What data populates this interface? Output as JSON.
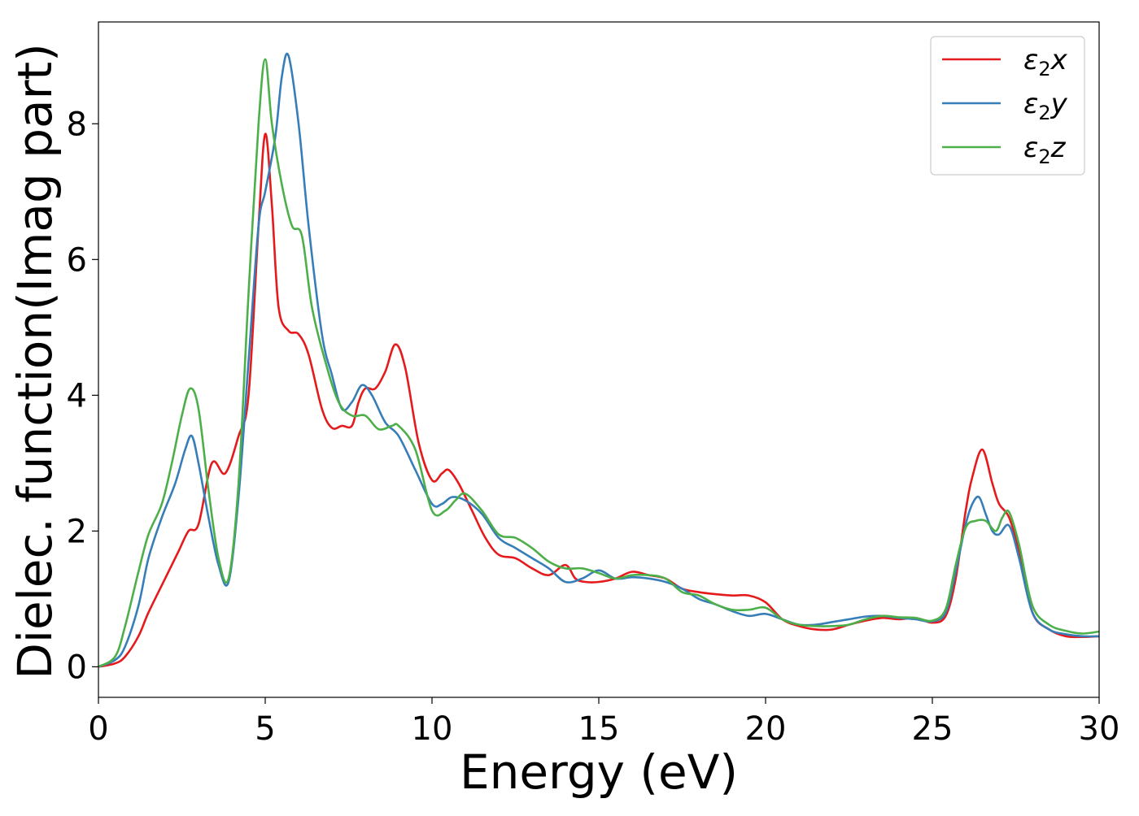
{
  "chart_data": {
    "type": "line",
    "xlabel": "Energy (eV)",
    "ylabel": "Dielec. function(Imag part)",
    "xlim": [
      0,
      30
    ],
    "ylim": [
      -0.45,
      9.5
    ],
    "xticks": [
      0,
      5,
      10,
      15,
      20,
      25,
      30
    ],
    "yticks": [
      0,
      2,
      4,
      6,
      8
    ],
    "grid": false,
    "legend_position": "top-right",
    "series": [
      {
        "name": "ε2x",
        "legend_base": "ε",
        "legend_sub": "2",
        "legend_var": "x",
        "color": "#e41a1c",
        "x": [
          0,
          0.5,
          0.8,
          1.2,
          1.5,
          2.0,
          2.4,
          2.7,
          3.0,
          3.4,
          3.8,
          4.2,
          4.5,
          4.8,
          5.0,
          5.2,
          5.4,
          5.7,
          6.0,
          6.3,
          6.7,
          7.0,
          7.3,
          7.6,
          7.8,
          8.0,
          8.3,
          8.6,
          8.9,
          9.2,
          9.6,
          10.0,
          10.3,
          10.5,
          10.8,
          11.2,
          11.6,
          12.0,
          12.5,
          13.0,
          13.5,
          14.0,
          14.3,
          14.6,
          15.0,
          15.5,
          16.0,
          16.5,
          17.0,
          17.5,
          18.0,
          18.5,
          19.0,
          19.5,
          20.0,
          20.5,
          21.0,
          21.5,
          22.0,
          22.5,
          23.0,
          23.5,
          24.0,
          24.5,
          25.0,
          25.4,
          25.7,
          26.0,
          26.2,
          26.5,
          26.8,
          27.0,
          27.3,
          27.6,
          28.0,
          28.5,
          29.0,
          29.5,
          30.0
        ],
        "values": [
          0,
          0.05,
          0.15,
          0.45,
          0.8,
          1.3,
          1.7,
          2.0,
          2.1,
          3.0,
          2.85,
          3.4,
          4.0,
          6.5,
          7.85,
          6.8,
          5.3,
          4.95,
          4.9,
          4.6,
          3.8,
          3.52,
          3.55,
          3.55,
          3.9,
          4.1,
          4.1,
          4.35,
          4.75,
          4.4,
          3.3,
          2.75,
          2.85,
          2.9,
          2.7,
          2.3,
          1.9,
          1.65,
          1.6,
          1.45,
          1.35,
          1.5,
          1.3,
          1.25,
          1.25,
          1.3,
          1.4,
          1.35,
          1.3,
          1.15,
          1.1,
          1.07,
          1.05,
          1.05,
          0.95,
          0.7,
          0.6,
          0.55,
          0.55,
          0.62,
          0.68,
          0.72,
          0.7,
          0.72,
          0.65,
          0.75,
          1.3,
          2.3,
          2.8,
          3.2,
          2.7,
          2.4,
          2.2,
          1.7,
          0.8,
          0.55,
          0.45,
          0.44,
          0.45
        ]
      },
      {
        "name": "ε2y",
        "legend_base": "ε",
        "legend_sub": "2",
        "legend_var": "y",
        "color": "#377eb8",
        "x": [
          0,
          0.5,
          0.8,
          1.2,
          1.5,
          1.9,
          2.3,
          2.6,
          2.8,
          3.0,
          3.3,
          3.6,
          3.9,
          4.2,
          4.5,
          4.8,
          5.0,
          5.3,
          5.5,
          5.7,
          6.0,
          6.3,
          6.7,
          7.0,
          7.3,
          7.6,
          7.9,
          8.2,
          8.6,
          9.0,
          9.5,
          10.0,
          10.3,
          10.6,
          11.0,
          11.5,
          12.0,
          12.5,
          13.0,
          13.5,
          14.0,
          14.5,
          15.0,
          15.5,
          16.0,
          16.5,
          17.0,
          17.5,
          18.0,
          18.5,
          19.0,
          19.5,
          20.0,
          20.5,
          21.0,
          21.5,
          22.0,
          22.5,
          23.0,
          23.5,
          24.0,
          24.5,
          25.0,
          25.4,
          25.7,
          26.0,
          26.2,
          26.4,
          26.6,
          26.8,
          27.0,
          27.3,
          27.6,
          28.0,
          28.5,
          29.0,
          29.5,
          30.0
        ],
        "values": [
          0,
          0.1,
          0.3,
          0.9,
          1.6,
          2.2,
          2.7,
          3.2,
          3.4,
          3.0,
          2.2,
          1.5,
          1.25,
          2.5,
          4.5,
          6.5,
          7.0,
          7.8,
          8.7,
          9.0,
          8.0,
          6.5,
          4.9,
          4.3,
          3.8,
          3.9,
          4.15,
          4.0,
          3.6,
          3.4,
          2.9,
          2.4,
          2.4,
          2.5,
          2.45,
          2.25,
          1.9,
          1.75,
          1.6,
          1.45,
          1.25,
          1.3,
          1.42,
          1.3,
          1.32,
          1.3,
          1.25,
          1.15,
          1.0,
          0.92,
          0.82,
          0.75,
          0.78,
          0.7,
          0.62,
          0.62,
          0.66,
          0.7,
          0.74,
          0.75,
          0.72,
          0.7,
          0.67,
          0.8,
          1.4,
          2.1,
          2.4,
          2.5,
          2.25,
          2.0,
          1.95,
          2.08,
          1.6,
          0.8,
          0.55,
          0.48,
          0.45,
          0.45
        ]
      },
      {
        "name": "ε2z",
        "legend_base": "ε",
        "legend_sub": "2",
        "legend_var": "z",
        "color": "#4daf4a",
        "x": [
          0,
          0.5,
          0.8,
          1.2,
          1.5,
          1.9,
          2.2,
          2.5,
          2.75,
          3.0,
          3.3,
          3.6,
          3.9,
          4.2,
          4.5,
          4.8,
          5.0,
          5.2,
          5.5,
          5.8,
          6.1,
          6.4,
          6.8,
          7.2,
          7.6,
          8.0,
          8.4,
          8.8,
          9.0,
          9.5,
          10.0,
          10.4,
          10.7,
          11.0,
          11.5,
          12.0,
          12.5,
          13.0,
          13.5,
          14.0,
          14.5,
          15.0,
          15.5,
          16.0,
          16.5,
          17.0,
          17.5,
          18.0,
          18.5,
          19.0,
          19.5,
          20.0,
          20.5,
          21.0,
          21.5,
          22.0,
          22.5,
          23.0,
          23.5,
          24.0,
          24.5,
          25.0,
          25.4,
          25.7,
          26.0,
          26.3,
          26.6,
          26.9,
          27.1,
          27.3,
          27.6,
          28.0,
          28.5,
          29.0,
          29.5,
          30.0
        ],
        "values": [
          0,
          0.15,
          0.6,
          1.4,
          1.95,
          2.4,
          3.0,
          3.7,
          4.1,
          3.8,
          2.6,
          1.6,
          1.3,
          2.7,
          5.5,
          8.0,
          8.95,
          8.0,
          7.1,
          6.5,
          6.35,
          5.3,
          4.5,
          3.9,
          3.7,
          3.7,
          3.5,
          3.55,
          3.55,
          3.2,
          2.3,
          2.3,
          2.45,
          2.55,
          2.3,
          1.95,
          1.9,
          1.75,
          1.55,
          1.45,
          1.45,
          1.38,
          1.3,
          1.35,
          1.35,
          1.3,
          1.1,
          1.05,
          0.92,
          0.84,
          0.84,
          0.87,
          0.7,
          0.62,
          0.6,
          0.6,
          0.62,
          0.7,
          0.75,
          0.73,
          0.72,
          0.68,
          0.85,
          1.5,
          2.05,
          2.15,
          2.15,
          2.0,
          2.2,
          2.28,
          1.8,
          0.9,
          0.62,
          0.53,
          0.49,
          0.52
        ]
      }
    ]
  }
}
